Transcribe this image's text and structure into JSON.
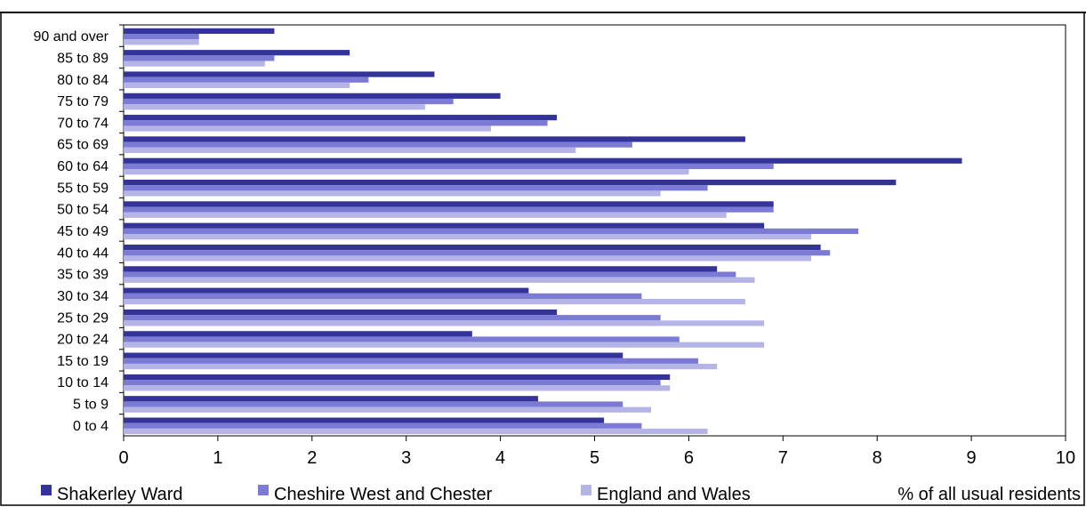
{
  "chart_data": {
    "type": "bar",
    "orientation": "horizontal",
    "categories": [
      "0 to 4",
      "5 to 9",
      "10 to 14",
      "15 to 19",
      "20 to 24",
      "25 to 29",
      "30 to 34",
      "35 to 39",
      "40 to 44",
      "45 to 49",
      "50 to 54",
      "55 to 59",
      "60 to 64",
      "65 to 69",
      "70 to 74",
      "75 to 79",
      "80 to 84",
      "85 to 89",
      "90 and over"
    ],
    "series": [
      {
        "name": "Shakerley Ward",
        "color": "#333399",
        "values": [
          5.1,
          4.4,
          5.8,
          5.3,
          3.7,
          4.6,
          4.3,
          6.3,
          7.4,
          6.8,
          6.9,
          8.2,
          8.9,
          6.6,
          4.6,
          4.0,
          3.3,
          2.4,
          1.6
        ]
      },
      {
        "name": "Cheshire West and Chester",
        "color": "#7b7bd6",
        "values": [
          5.5,
          5.3,
          5.7,
          6.1,
          5.9,
          5.7,
          5.5,
          6.5,
          7.5,
          7.8,
          6.9,
          6.2,
          6.9,
          5.4,
          4.5,
          3.5,
          2.6,
          1.6,
          0.8
        ]
      },
      {
        "name": "England and Wales",
        "color": "#b4b4e6",
        "values": [
          6.2,
          5.6,
          5.8,
          6.3,
          6.8,
          6.8,
          6.6,
          6.7,
          7.3,
          7.3,
          6.4,
          5.7,
          6.0,
          4.8,
          3.9,
          3.2,
          2.4,
          1.5,
          0.8
        ]
      }
    ],
    "xlabel": "% of all usual residents",
    "xlim": [
      0,
      10
    ],
    "xticks": [
      "0",
      "1",
      "2",
      "3",
      "4",
      "5",
      "6",
      "7",
      "8",
      "9",
      "10"
    ],
    "grid": false,
    "legend_position": "bottom"
  }
}
